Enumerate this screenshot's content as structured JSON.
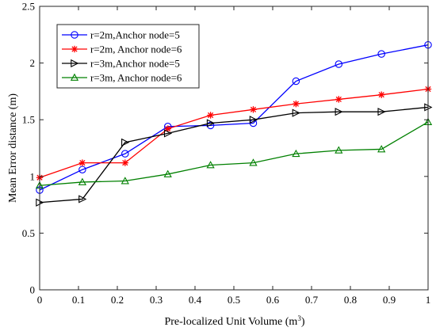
{
  "chart_data": {
    "type": "line",
    "title": "",
    "xlabel": "Pre-localized Unit Volume (m",
    "xlabel_sup": "3",
    "xlabel_end": ")",
    "ylabel": "Mean Error distance (m)",
    "xlim": [
      0,
      1
    ],
    "ylim": [
      0,
      2.5
    ],
    "grid": false,
    "legend_position": "top-left",
    "x_ticks": [
      "0",
      "0.1",
      "0.2",
      "0.3",
      "0.4",
      "0.5",
      "0.6",
      "0.7",
      "0.8",
      "0.9",
      "1"
    ],
    "y_ticks": [
      "0",
      "0.5",
      "1",
      "1.5",
      "2",
      "2.5"
    ],
    "x": [
      0,
      0.11,
      0.22,
      0.33,
      0.44,
      0.55,
      0.66,
      0.77,
      0.88,
      1.0
    ],
    "series": [
      {
        "name": "r=2m,Anchor node=5",
        "color": "#0000ff",
        "marker": "circle",
        "values": [
          0.88,
          1.06,
          1.2,
          1.44,
          1.45,
          1.47,
          1.84,
          1.99,
          2.08,
          2.16
        ]
      },
      {
        "name": "r=2m, Anchor node=6",
        "color": "#ff0000",
        "marker": "star",
        "values": [
          0.99,
          1.12,
          1.12,
          1.42,
          1.54,
          1.59,
          1.64,
          1.68,
          1.72,
          1.77
        ]
      },
      {
        "name": "r=3m,Anchor node=5",
        "color": "#000000",
        "marker": "triangle-right",
        "values": [
          0.77,
          0.8,
          1.3,
          1.38,
          1.47,
          1.5,
          1.56,
          1.57,
          1.57,
          1.61
        ]
      },
      {
        "name": "r=3m, Anchor node=6",
        "color": "#008000",
        "marker": "triangle-up",
        "values": [
          0.92,
          0.95,
          0.96,
          1.02,
          1.1,
          1.12,
          1.2,
          1.23,
          1.24,
          1.48
        ]
      }
    ]
  }
}
